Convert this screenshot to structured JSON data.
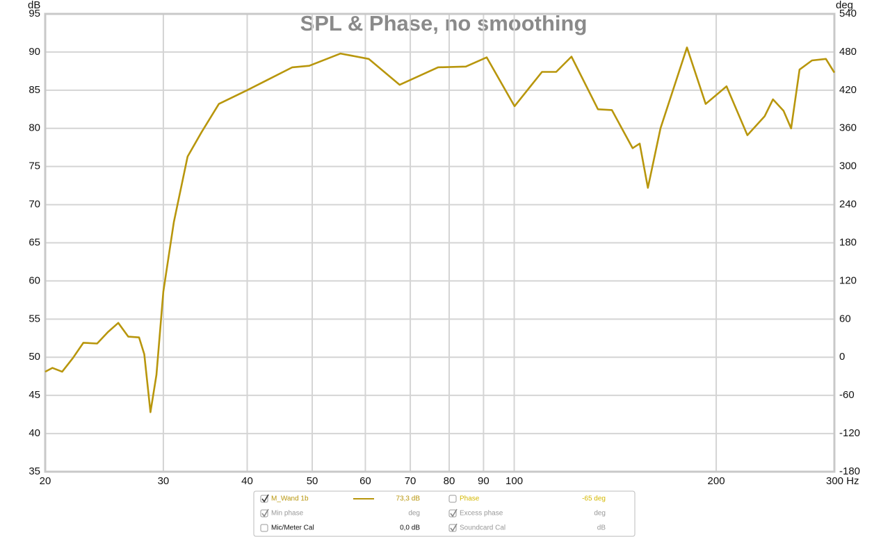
{
  "chart_data": {
    "type": "line",
    "title": "SPL & Phase, no smoothing",
    "ylabel": "dB",
    "y2label": "deg",
    "xscale": "log",
    "grid": true,
    "x": [
      20,
      20.5,
      21.2,
      22.0,
      22.8,
      23.9,
      24.8,
      25.7,
      26.6,
      27.6,
      28.1,
      28.7,
      29.3,
      30.0,
      31.1,
      32.6,
      34.2,
      36.3,
      40.0,
      46.7,
      49.5,
      55.1,
      60.7,
      67.5,
      77.0,
      84.7,
      91.0,
      100.1,
      110,
      115.5,
      121.7,
      133.3,
      139.8,
      150.1,
      153.8,
      158.2,
      165.2,
      180.9,
      192.9,
      207.2,
      222.6,
      236.2,
      243.0,
      252.0,
      258.6,
      266.2,
      277.8,
      291.4,
      300
    ],
    "series": [
      {
        "name": "M_Wand 1b",
        "color": "#b8960c",
        "values": [
          48.1,
          48.6,
          48.1,
          49.9,
          51.9,
          51.8,
          53.3,
          54.5,
          52.7,
          52.6,
          50.4,
          42.8,
          47.7,
          58.6,
          67.7,
          76.3,
          79.5,
          83.2,
          85.0,
          88.0,
          88.2,
          89.8,
          89.1,
          85.7,
          88.0,
          88.1,
          89.3,
          82.9,
          87.4,
          87.4,
          89.4,
          82.5,
          82.4,
          77.4,
          78.0,
          72.2,
          80.0,
          90.6,
          83.2,
          85.5,
          79.1,
          81.6,
          83.8,
          82.3,
          80.0,
          87.7,
          88.9,
          89.1,
          87.3
        ]
      }
    ],
    "xlim": [
      20,
      300
    ],
    "xticks": [
      20,
      30,
      40,
      50,
      60,
      70,
      80,
      90,
      100,
      200,
      {
        "value": 300,
        "label": "300 Hz"
      }
    ],
    "ylim": [
      35,
      95
    ],
    "yticks": [
      35,
      40,
      45,
      50,
      55,
      60,
      65,
      70,
      75,
      80,
      85,
      90,
      95
    ],
    "y2lim": [
      -180,
      540
    ],
    "y2ticks": [
      -180,
      -120,
      -60,
      0,
      60,
      120,
      180,
      240,
      300,
      360,
      420,
      480,
      540
    ],
    "legend": [
      {
        "series": 0,
        "readout": "73,3 dB",
        "checked": true,
        "color": "#b8960c"
      },
      {
        "name": "Phase",
        "readout": "-65 deg",
        "checked": false,
        "color": "#d4b800"
      },
      {
        "name": "Min phase",
        "readout": "deg",
        "checked": true,
        "color": "#999999"
      },
      {
        "name": "Excess phase",
        "readout": "deg",
        "checked": true,
        "color": "#999999"
      },
      {
        "name": "Mic/Meter Cal",
        "readout": "0,0 dB",
        "checked": false,
        "color": "#111111"
      },
      {
        "name": "Soundcard Cal",
        "readout": "dB",
        "checked": true,
        "color": "#999999"
      }
    ]
  }
}
